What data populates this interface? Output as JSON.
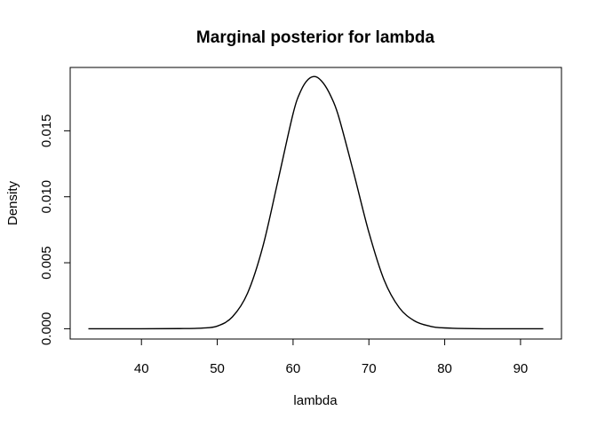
{
  "chart_data": {
    "type": "line",
    "title": "Marginal posterior for lambda",
    "xlabel": "lambda",
    "ylabel": "Density",
    "xlim": [
      30.6,
      95.4
    ],
    "ylim": [
      -0.00078,
      0.0198
    ],
    "xticks": [
      40,
      50,
      60,
      70,
      80,
      90
    ],
    "yticks": [
      0.0,
      0.005,
      0.01,
      0.015
    ],
    "xtick_labels": [
      "40",
      "50",
      "60",
      "70",
      "80",
      "90"
    ],
    "ytick_labels": [
      "0.000",
      "0.005",
      "0.010",
      "0.015"
    ],
    "grid": false,
    "legend": "none",
    "series": [
      {
        "x": [
          33,
          40,
          45,
          48,
          50,
          52,
          54,
          56,
          58,
          60,
          61,
          62,
          63,
          64,
          65,
          66,
          68,
          70,
          72,
          74,
          76,
          78,
          80,
          85,
          93
        ],
        "y": [
          0.0,
          0.0,
          1e-05,
          5e-05,
          0.0002,
          0.0009,
          0.0027,
          0.0062,
          0.0112,
          0.0163,
          0.018,
          0.0189,
          0.0191,
          0.0186,
          0.0176,
          0.0161,
          0.0118,
          0.0073,
          0.0037,
          0.0016,
          0.0006,
          0.0002,
          6e-05,
          0.0,
          0.0
        ]
      }
    ]
  }
}
